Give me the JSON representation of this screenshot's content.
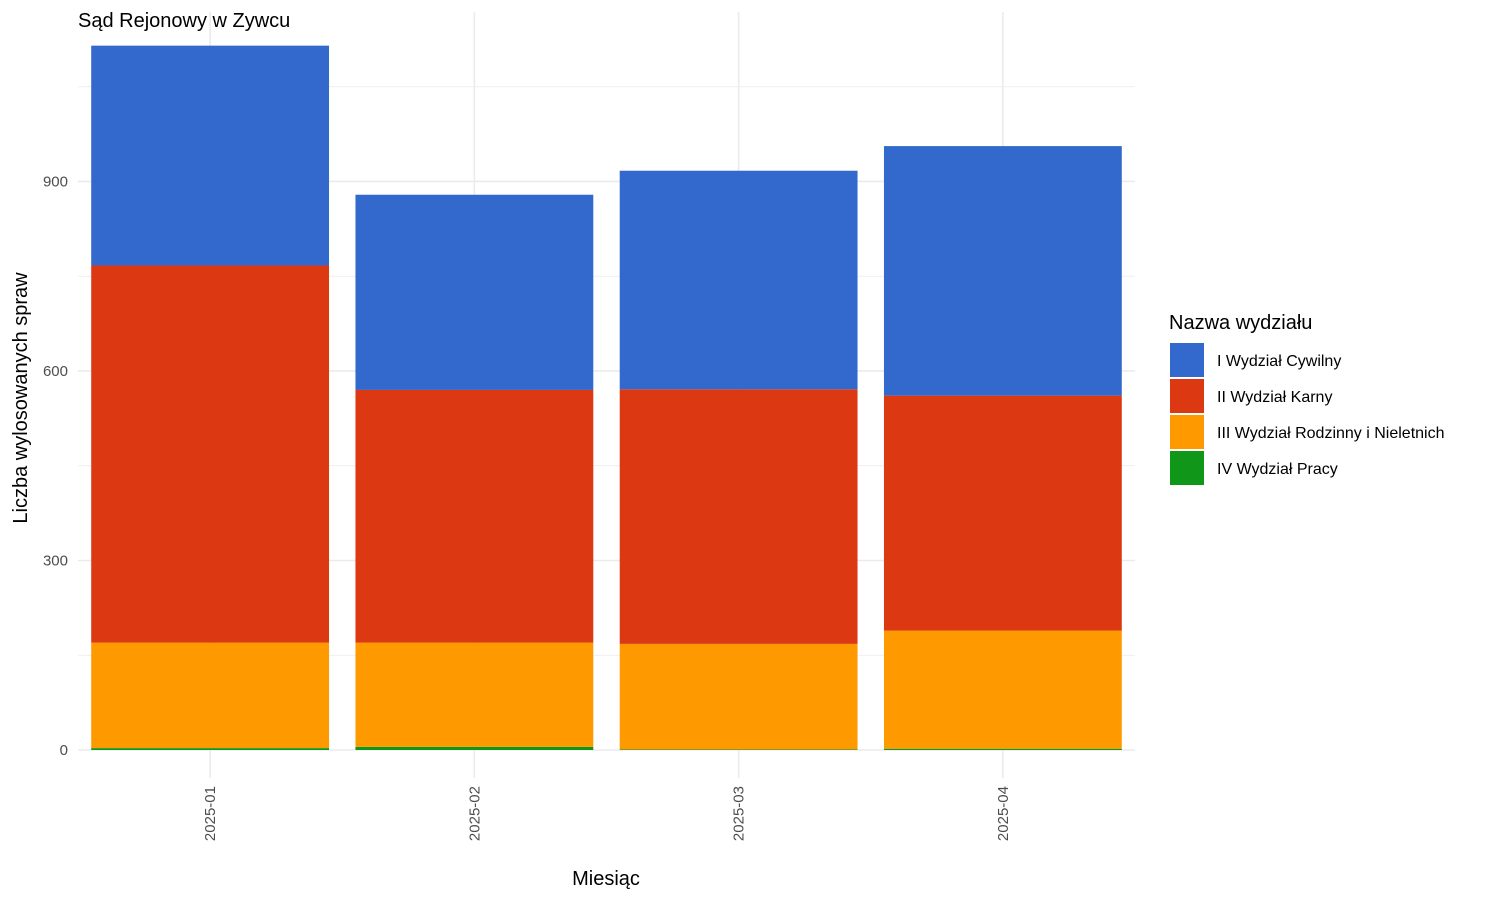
{
  "chart_data": {
    "type": "bar",
    "stacked": true,
    "title": "Sąd Rejonowy w Zywcu",
    "xlabel": "Miesiąc",
    "ylabel": "Liczba wylosowanych spraw",
    "categories": [
      "2025-01",
      "2025-02",
      "2025-03",
      "2025-04"
    ],
    "ylim": [
      0,
      1168
    ],
    "yticks": [
      0,
      300,
      600,
      900
    ],
    "grid": true,
    "legend": {
      "title": "Nazwa wydziału",
      "placement": "right"
    },
    "series": [
      {
        "name": "I Wydział Cywilny",
        "color": "#3369CC",
        "values": [
          348,
          309,
          346,
          395
        ]
      },
      {
        "name": "II Wydział Karny",
        "color": "#DC3912",
        "values": [
          597,
          400,
          403,
          372
        ]
      },
      {
        "name": "III Wydział Rodzinny i Nieletnich",
        "color": "#FF9900",
        "values": [
          167,
          165,
          167,
          187
        ]
      },
      {
        "name": "IV Wydział Pracy",
        "color": "#109618",
        "values": [
          3,
          5,
          1,
          2
        ]
      }
    ]
  }
}
